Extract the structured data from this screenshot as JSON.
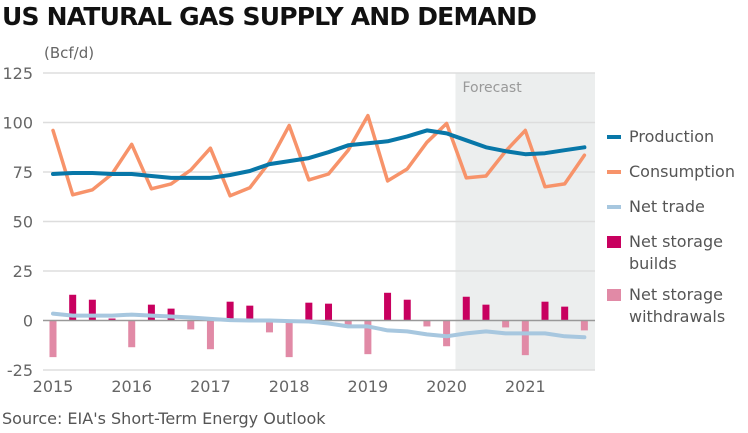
{
  "title": "US NATURAL GAS SUPPLY AND DEMAND",
  "unit_label": "(Bcf/d)",
  "source": "Source: EIA's Short-Term Energy Outlook",
  "forecast_label": "Forecast",
  "colors": {
    "production": "#0877a8",
    "consumption": "#f7936a",
    "net_trade": "#a7c7df",
    "builds": "#c8005f",
    "withdrawals": "#e18aa6",
    "forecast_bg": "#eceeee",
    "grid": "#dddddd",
    "zero": "#999999"
  },
  "legend": [
    {
      "label": "Production",
      "key": "production",
      "kind": "line"
    },
    {
      "label": "Consumption",
      "key": "consumption",
      "kind": "line"
    },
    {
      "label": "Net trade",
      "key": "net_trade",
      "kind": "line"
    },
    {
      "label": "Net storage builds",
      "line1": "Net storage",
      "line2": "builds",
      "key": "builds",
      "kind": "box"
    },
    {
      "label": "Net storage withdrawals",
      "line1": "Net storage",
      "line2": "withdrawals",
      "key": "withdrawals",
      "kind": "box"
    }
  ],
  "chart_data": {
    "type": "line",
    "title": "US NATURAL GAS SUPPLY AND DEMAND",
    "ylabel": "(Bcf/d)",
    "xlabel": "",
    "ylim": [
      -25,
      125
    ],
    "yticks": [
      125,
      100,
      75,
      50,
      25,
      0,
      -25
    ],
    "xtick_labels": [
      "2015",
      "2016",
      "2017",
      "2018",
      "2019",
      "2020",
      "2021"
    ],
    "grid": true,
    "legend_position": "right",
    "forecast_start": "2020Q2",
    "x": [
      "2015Q1",
      "2015Q2",
      "2015Q3",
      "2015Q4",
      "2016Q1",
      "2016Q2",
      "2016Q3",
      "2016Q4",
      "2017Q1",
      "2017Q2",
      "2017Q3",
      "2017Q4",
      "2018Q1",
      "2018Q2",
      "2018Q3",
      "2018Q4",
      "2019Q1",
      "2019Q2",
      "2019Q3",
      "2019Q4",
      "2020Q1",
      "2020Q2",
      "2020Q3",
      "2020Q4",
      "2021Q1",
      "2021Q2",
      "2021Q3",
      "2021Q4"
    ],
    "series": [
      {
        "name": "Production",
        "type": "line",
        "values": [
          74,
          74.5,
          74.5,
          74,
          74,
          73,
          72,
          72,
          72,
          73.5,
          75.5,
          79,
          80.5,
          82,
          85,
          88.5,
          89.5,
          90.5,
          93,
          96,
          94.5,
          91,
          87.5,
          85.5,
          84,
          84.5,
          86,
          87.5
        ]
      },
      {
        "name": "Consumption",
        "type": "line",
        "values": [
          96,
          63.5,
          66,
          74,
          89,
          66.5,
          69,
          76,
          87,
          63,
          67,
          80,
          98.5,
          71,
          74,
          86,
          103.5,
          70.5,
          76.5,
          90,
          99.5,
          72,
          73,
          85.5,
          96,
          67.5,
          69,
          83.5
        ]
      },
      {
        "name": "Net trade",
        "type": "line",
        "values": [
          3.5,
          2.5,
          2.5,
          2.5,
          3,
          2.5,
          2,
          1.5,
          0.8,
          0.2,
          0,
          0,
          -0.3,
          -0.5,
          -1.5,
          -3,
          -3,
          -5,
          -5.5,
          -7,
          -8,
          -6.5,
          -5.5,
          -6.5,
          -6.5,
          -6.5,
          -8,
          -8.5
        ]
      },
      {
        "name": "Net storage builds",
        "type": "bar",
        "values": [
          0,
          13,
          10.5,
          1,
          0,
          8,
          6,
          0,
          0,
          9.5,
          7.5,
          0,
          0,
          9,
          8.5,
          0,
          0,
          14,
          10.5,
          0,
          0,
          12,
          8,
          0,
          0,
          9.5,
          7,
          0
        ]
      },
      {
        "name": "Net storage withdrawals",
        "type": "bar",
        "values": [
          -18.5,
          0,
          0,
          0,
          -13.5,
          0,
          0,
          -4.5,
          -14.5,
          0,
          0,
          -6,
          -18.5,
          0,
          0,
          -2.5,
          -17,
          0,
          0,
          -3,
          -13,
          0,
          0,
          -3.5,
          -17.5,
          0,
          0,
          -5
        ]
      }
    ]
  }
}
